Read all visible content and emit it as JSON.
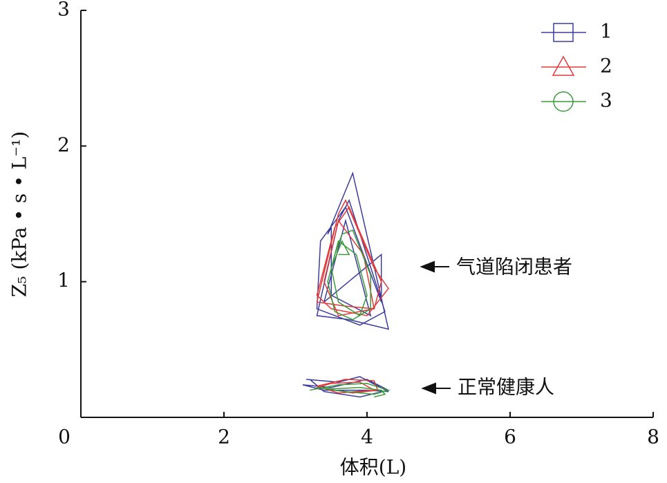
{
  "chart_data": {
    "type": "line",
    "xlabel": "体积(L)",
    "ylabel": "Z₅ (kPa • s • L⁻¹)",
    "xlim": [
      0,
      8
    ],
    "xticks": [
      0,
      2,
      4,
      6,
      8
    ],
    "ylim": [
      0,
      3
    ],
    "yticks": [
      1,
      2,
      3
    ],
    "annotations": [
      "气道陷闭患者",
      "正常健康人"
    ],
    "series": [
      {
        "name": "1",
        "color": "#3c3c9c",
        "marker": "square",
        "x": [
          3.45,
          3.8,
          4.3,
          3.75,
          3.3,
          3.6,
          3.75,
          4.25,
          3.9,
          3.3,
          3.35,
          3.7,
          4.2,
          4.2,
          3.4,
          3.7,
          4.05,
          3.5,
          3.5,
          3.45,
          null,
          3.15,
          3.6,
          3.9,
          4.3,
          4.0,
          3.4,
          3.1,
          3.5,
          4.0,
          4.3,
          3.9,
          3.4,
          3.2
        ],
        "values": [
          1.35,
          1.8,
          0.65,
          0.72,
          0.75,
          1.45,
          1.6,
          0.78,
          0.68,
          0.8,
          1.3,
          1.55,
          0.85,
          1.2,
          0.85,
          1.45,
          0.75,
          0.9,
          1.4,
          1.35,
          null,
          0.28,
          0.26,
          0.3,
          0.19,
          0.2,
          0.2,
          0.24,
          0.22,
          0.28,
          0.2,
          0.15,
          0.19,
          0.28
        ]
      },
      {
        "name": "2",
        "color": "#e03a3a",
        "marker": "triangle",
        "x": [
          3.3,
          3.6,
          3.7,
          4.1,
          4.3,
          4.0,
          3.5,
          3.3,
          3.55,
          3.75,
          4.2,
          4.1,
          3.6,
          3.4,
          3.6,
          3.95,
          4.1,
          3.7,
          3.3,
          null,
          3.3,
          3.7,
          4.1,
          4.15,
          3.8,
          3.3,
          3.5,
          3.9,
          4.1,
          3.6,
          3.3
        ],
        "values": [
          0.85,
          1.5,
          1.6,
          1.1,
          0.95,
          0.75,
          0.8,
          0.9,
          1.4,
          1.55,
          1.0,
          0.8,
          0.75,
          1.0,
          1.45,
          1.2,
          0.8,
          0.82,
          0.85,
          null,
          0.23,
          0.28,
          0.27,
          0.2,
          0.18,
          0.22,
          0.25,
          0.26,
          0.2,
          0.18,
          0.23
        ]
      },
      {
        "name": "3",
        "color": "#3a9a3a",
        "marker": "circle",
        "x": [
          3.55,
          3.65,
          3.8,
          4.05,
          4.05,
          3.8,
          3.55,
          3.45,
          3.6,
          3.85,
          4.0,
          3.9,
          3.6,
          3.5,
          3.65,
          3.75,
          3.6,
          null,
          3.2,
          3.6,
          4.0,
          4.3,
          4.1,
          3.7,
          3.3,
          3.5,
          3.9,
          4.2,
          4.25,
          4.1
        ],
        "values": [
          1.2,
          1.35,
          1.38,
          1.05,
          0.8,
          0.72,
          0.78,
          1.0,
          1.3,
          1.2,
          0.9,
          0.75,
          0.85,
          1.1,
          1.3,
          1.2,
          1.2,
          null,
          0.2,
          0.24,
          0.25,
          0.2,
          0.17,
          0.19,
          0.22,
          0.21,
          0.22,
          0.2,
          0.17,
          0.15
        ]
      }
    ]
  }
}
